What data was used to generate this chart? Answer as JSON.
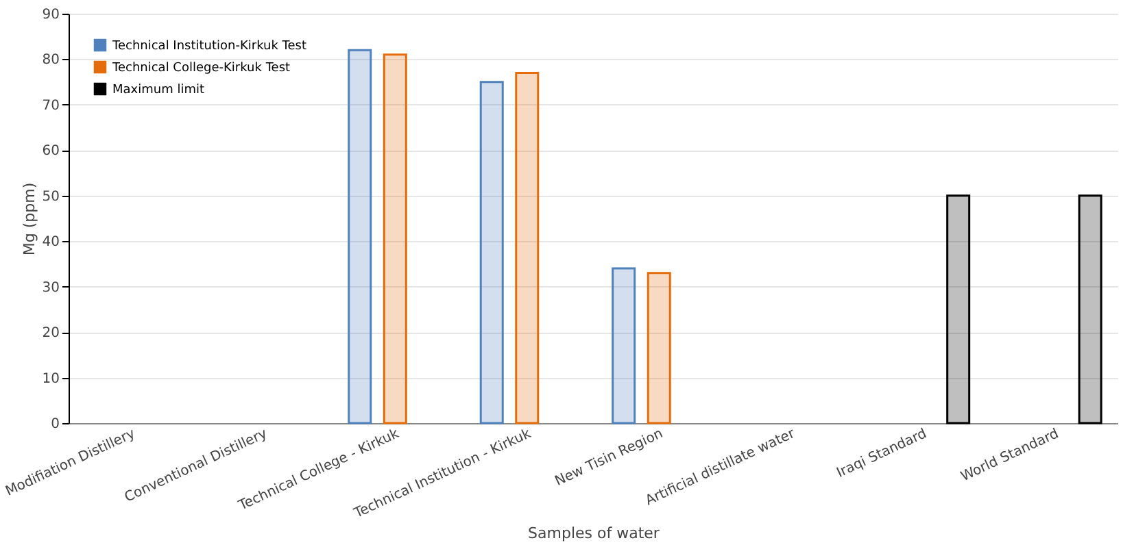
{
  "chart_data": {
    "type": "bar",
    "xlabel": "Samples of water",
    "ylabel": "Mg (ppm)",
    "categories": [
      "Modifiation Distillery",
      "Conventional Distillery",
      "Technical College - Kirkuk",
      "Technical Institution - Kirkuk",
      "New Tisin Region",
      "Artificial distillate water",
      "Iraqi Standard",
      "World Standard"
    ],
    "series": [
      {
        "name": "Technical Institution-Kirkuk Test",
        "color": "#4f81bd",
        "values": [
          null,
          null,
          82,
          75,
          34,
          null,
          null,
          null
        ]
      },
      {
        "name": "Technical College-Kirkuk Test",
        "color": "#e46c0a",
        "values": [
          null,
          null,
          81,
          77,
          33,
          null,
          null,
          null
        ]
      },
      {
        "name": "Maximum limit",
        "color": "#000000",
        "values": [
          null,
          null,
          null,
          null,
          null,
          null,
          50,
          50
        ]
      }
    ],
    "ylim": [
      0,
      90
    ],
    "yticks": [
      0,
      10,
      20,
      30,
      40,
      50,
      60,
      70,
      80,
      90
    ],
    "grid": "y",
    "legend": "top left"
  }
}
